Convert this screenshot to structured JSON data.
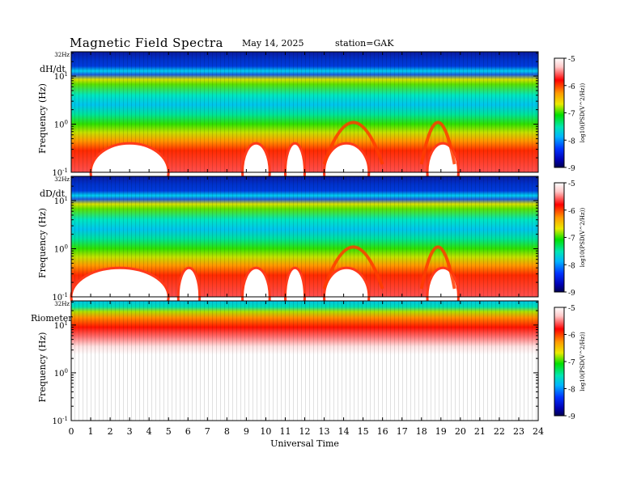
{
  "header": {
    "title": "Magnetic  Field  Spectra",
    "date": "May 14, 2025",
    "station": "station=GAK"
  },
  "chart_data": {
    "type": "heatmap",
    "xlabel": "Universal Time",
    "x_ticks": [
      "0",
      "1",
      "2",
      "3",
      "4",
      "5",
      "6",
      "7",
      "8",
      "9",
      "10",
      "11",
      "12",
      "13",
      "14",
      "15",
      "16",
      "17",
      "18",
      "19",
      "20",
      "21",
      "22",
      "23",
      "24"
    ],
    "xlim": [
      0,
      24
    ],
    "ylabel": "Frequency (Hz)",
    "y_scale": "log",
    "ylim": [
      0.1,
      32
    ],
    "y_top_label": "32Hz",
    "colorbar_label": "log10(PSD(V^2/Hz))",
    "colorbar_range": [
      -9,
      -5
    ],
    "colorbar_ticks": [
      "-5",
      "-6",
      "-7",
      "-8",
      "-9"
    ],
    "panels": [
      {
        "label": "dH/dt",
        "white_regions_ut": [
          [
            1,
            5
          ],
          [
            8.8,
            10.2
          ],
          [
            11,
            12
          ],
          [
            13,
            15.3
          ],
          [
            18.3,
            19.9
          ]
        ],
        "emission_arches_ut": [
          [
            13,
            16
          ],
          [
            18,
            19.7
          ]
        ]
      },
      {
        "label": "dD/dt",
        "white_regions_ut": [
          [
            0,
            5
          ],
          [
            5.5,
            6.6
          ],
          [
            8.8,
            10.2
          ],
          [
            11,
            12
          ],
          [
            13,
            15.3
          ],
          [
            18.3,
            19.9
          ]
        ],
        "emission_arches_ut": [
          [
            13,
            16
          ],
          [
            18,
            19.7
          ]
        ]
      },
      {
        "label": "Riometer",
        "dominant_band_hz": [
          7,
          16
        ]
      }
    ]
  }
}
